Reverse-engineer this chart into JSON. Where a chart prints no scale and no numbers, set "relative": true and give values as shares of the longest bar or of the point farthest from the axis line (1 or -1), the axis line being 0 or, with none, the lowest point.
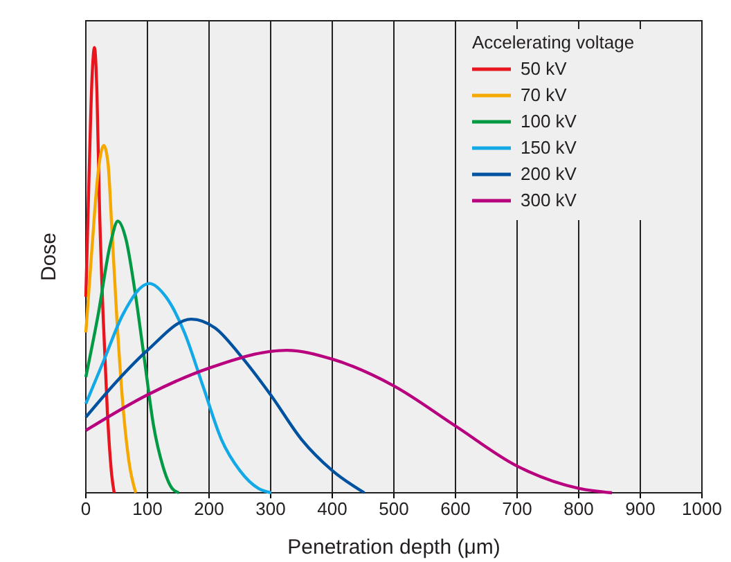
{
  "chart_data": {
    "type": "line",
    "relative": true,
    "xlabel": "Penetration depth (μm)",
    "ylabel": "Dose",
    "legend_title": "Accelerating voltage",
    "legend": "top right",
    "grid": "x",
    "xlim": [
      0,
      1000
    ],
    "xticks": [
      0,
      100,
      200,
      300,
      400,
      500,
      600,
      700,
      800,
      900,
      1000
    ],
    "series": [
      {
        "name": "50 kV",
        "color": "#e8141e",
        "x": [
          0,
          5,
          10,
          14,
          18,
          22,
          28,
          35,
          42,
          46
        ],
        "values": [
          0.44,
          0.7,
          0.93,
          1,
          0.9,
          0.65,
          0.4,
          0.18,
          0.04,
          0
        ]
      },
      {
        "name": "70 kV",
        "color": "#f5a800",
        "x": [
          0,
          10,
          20,
          29,
          36,
          42,
          50,
          60,
          70,
          81
        ],
        "values": [
          0.36,
          0.55,
          0.72,
          0.78,
          0.74,
          0.6,
          0.4,
          0.2,
          0.07,
          0
        ]
      },
      {
        "name": "100 kV",
        "color": "#009a44",
        "x": [
          0,
          20,
          40,
          52,
          65,
          80,
          95,
          110,
          125,
          140,
          151
        ],
        "values": [
          0.26,
          0.4,
          0.56,
          0.61,
          0.57,
          0.45,
          0.3,
          0.15,
          0.06,
          0.01,
          0
        ]
      },
      {
        "name": "150 kV",
        "color": "#13a8e6",
        "x": [
          0,
          30,
          60,
          103,
          130,
          160,
          190,
          220,
          250,
          280,
          301
        ],
        "values": [
          0.2,
          0.3,
          0.4,
          0.47,
          0.44,
          0.36,
          0.24,
          0.12,
          0.05,
          0.01,
          0
        ]
      },
      {
        "name": "200 kV",
        "color": "#0052a0",
        "x": [
          0,
          50,
          100,
          171,
          210,
          250,
          300,
          350,
          400,
          452
        ],
        "values": [
          0.17,
          0.25,
          0.32,
          0.39,
          0.37,
          0.31,
          0.22,
          0.12,
          0.05,
          0
        ]
      },
      {
        "name": "300 kV",
        "color": "#b8007f",
        "x": [
          0,
          100,
          200,
          326,
          400,
          500,
          600,
          700,
          800,
          854
        ],
        "values": [
          0.14,
          0.22,
          0.28,
          0.32,
          0.3,
          0.24,
          0.15,
          0.06,
          0.01,
          0
        ]
      }
    ]
  }
}
